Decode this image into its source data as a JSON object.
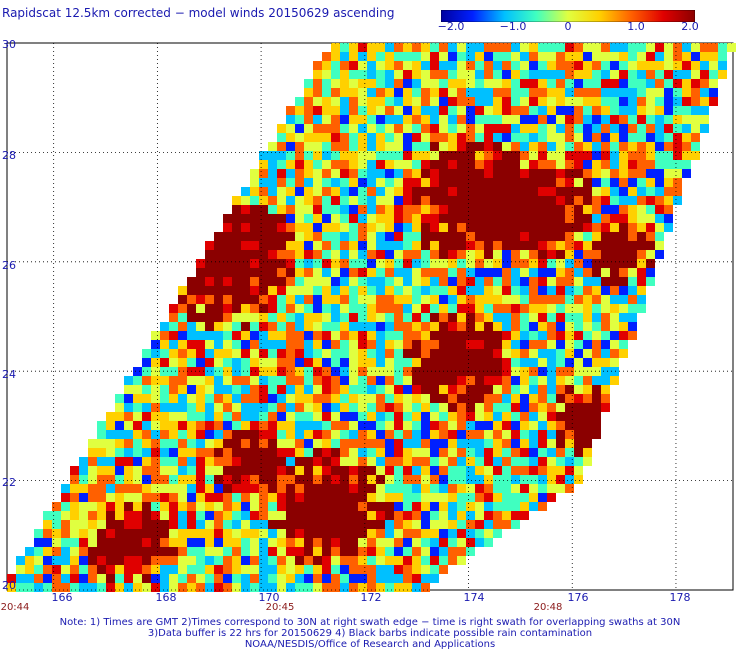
{
  "title": "Rapidscat 12.5km corrected − model winds 20150629 ascending",
  "colorbar": {
    "range": [
      -2.0,
      2.0
    ],
    "tick_labels": [
      "−2.0",
      "−1.0",
      "0",
      "1.0",
      "2.0"
    ],
    "colors": [
      "#0000a0",
      "#0020ff",
      "#00c0ff",
      "#40ffc0",
      "#e0ff40",
      "#ffd000",
      "#ff6000",
      "#e00000",
      "#8b0000"
    ]
  },
  "axes": {
    "lat_labels": [
      "30",
      "28",
      "26",
      "24",
      "22",
      "20"
    ],
    "lon_labels": [
      "166",
      "168",
      "170",
      "172",
      "174",
      "176",
      "178"
    ],
    "time_labels": [
      "20:44",
      "20:45",
      "20:48"
    ],
    "grid": "dotted"
  },
  "notes": [
    "Note: 1) Times are GMT 2)Times correspond to 30N at right swath edge − time is right swath for overlapping swaths at 30N",
    "3)Data buffer is 22 hrs for 20150629 4) Black barbs indicate possible rain contamination",
    "NOAA/NESDIS/Office of Research and Applications"
  ]
}
